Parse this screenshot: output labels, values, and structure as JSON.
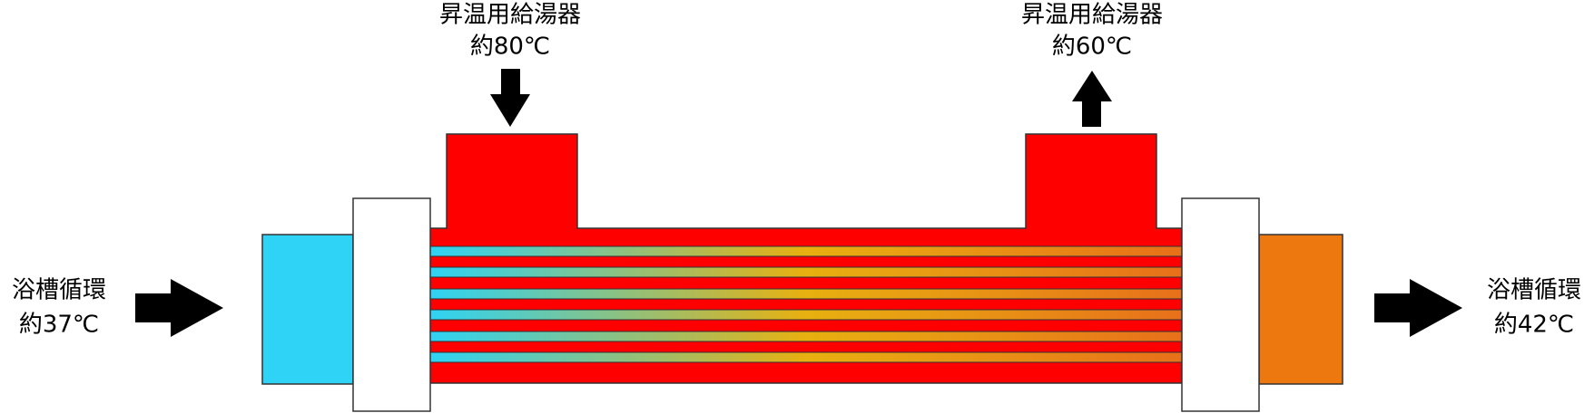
{
  "labels": {
    "hot_in": {
      "name": "昇温用給湯器",
      "temp": "約80℃"
    },
    "hot_out": {
      "name": "昇温用給湯器",
      "temp": "約60℃"
    },
    "bath_in": {
      "name": "浴槽循環",
      "temp": "約37℃"
    },
    "bath_out": {
      "name": "浴槽循環",
      "temp": "約42℃"
    }
  }
}
